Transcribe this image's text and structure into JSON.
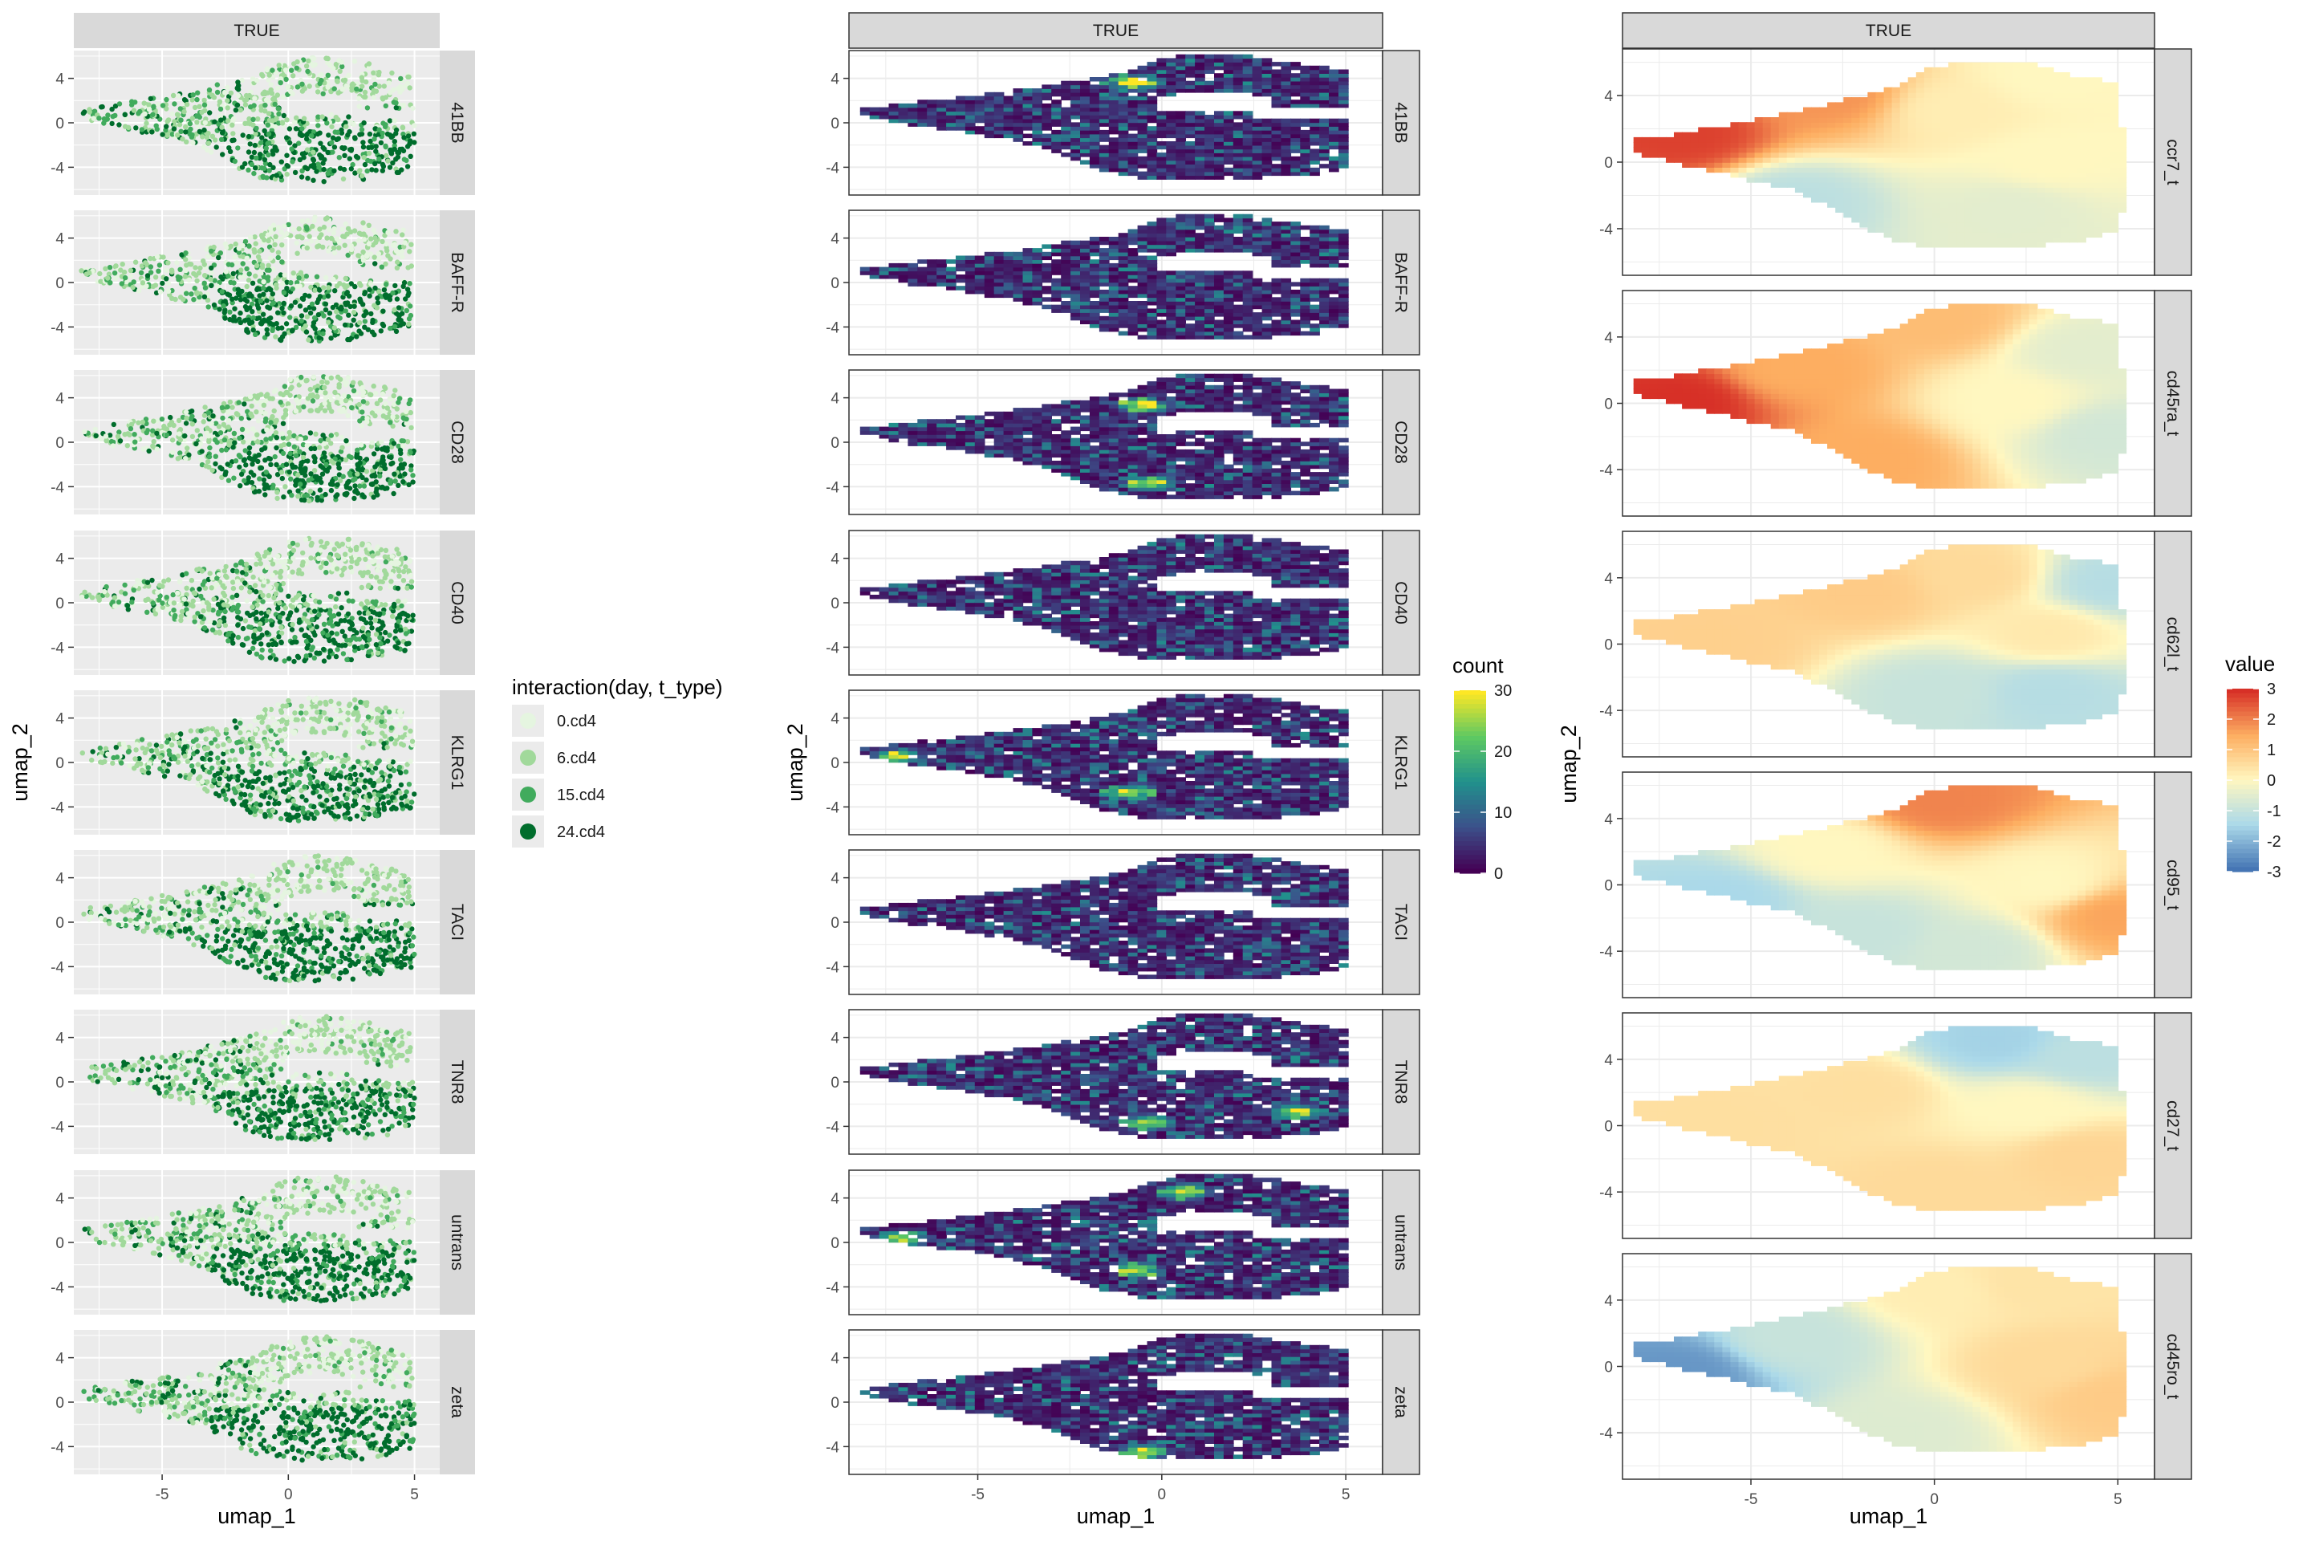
{
  "chart_data": [
    {
      "type": "scatter",
      "strip_top": "TRUE",
      "facets": [
        "41BB",
        "BAFF-R",
        "CD28",
        "CD40",
        "KLRG1",
        "TACI",
        "TNR8",
        "untrans",
        "zeta"
      ],
      "xlabel": "umap_1",
      "ylabel": "umap_2",
      "x_ticks": [
        -5,
        0,
        5
      ],
      "y_ticks": [
        4,
        0,
        -4
      ],
      "xlim": [
        -8.5,
        6
      ],
      "ylim": [
        -6.5,
        6.5
      ],
      "panel_background": "grey",
      "grid": true,
      "legend": {
        "title": "interaction(day, t_type)",
        "position": "right",
        "items": [
          {
            "label": "0.cd4",
            "color": "#e5f5e0"
          },
          {
            "label": "6.cd4",
            "color": "#a1d99b"
          },
          {
            "label": "15.cd4",
            "color": "#41ab5d"
          },
          {
            "label": "24.cd4",
            "color": "#006d2c"
          }
        ]
      }
    },
    {
      "type": "heatmap",
      "strip_top": "TRUE",
      "facets": [
        "41BB",
        "BAFF-R",
        "CD28",
        "CD40",
        "KLRG1",
        "TACI",
        "TNR8",
        "untrans",
        "zeta"
      ],
      "xlabel": "umap_1",
      "ylabel": "umap_2",
      "x_ticks": [
        -5,
        0,
        5
      ],
      "y_ticks": [
        4,
        0,
        -4
      ],
      "xlim": [
        -8.5,
        6
      ],
      "ylim": [
        -6.5,
        6.5
      ],
      "grid": true,
      "legend": {
        "title": "count",
        "position": "right",
        "range": [
          0,
          30
        ],
        "ticks": [
          30,
          20,
          10,
          0
        ],
        "palette": [
          "#440154",
          "#3b528b",
          "#21918c",
          "#5ec962",
          "#fde725"
        ]
      },
      "hotspots": {
        "41BB": [
          [
            -0.9,
            3.5
          ]
        ],
        "BAFF-R": [],
        "CD28": [
          [
            -0.7,
            3.2
          ],
          [
            -0.5,
            -3.8
          ]
        ],
        "CD40": [],
        "KLRG1": [
          [
            -7.3,
            0.4
          ],
          [
            -1.0,
            -2.8
          ]
        ],
        "TACI": [],
        "TNR8": [
          [
            3.5,
            -2.8
          ],
          [
            -0.5,
            -3.8
          ]
        ],
        "untrans": [
          [
            -7.2,
            0.2
          ],
          [
            0.5,
            4.4
          ],
          [
            -0.8,
            -2.6
          ]
        ],
        "zeta": [
          [
            -0.6,
            -4.6
          ]
        ]
      }
    },
    {
      "type": "heatmap",
      "strip_top": "TRUE",
      "facets": [
        "ccr7_t",
        "cd45ra_t",
        "cd62l_t",
        "cd95_t",
        "cd27_t",
        "cd45ro_t"
      ],
      "xlabel": "umap_1",
      "ylabel": "umap_2",
      "x_ticks": [
        -5,
        0,
        5
      ],
      "y_ticks": [
        4,
        0,
        -4
      ],
      "xlim": [
        -8.5,
        6
      ],
      "ylim": [
        -6.8,
        6.8
      ],
      "grid": true,
      "legend": {
        "title": "value",
        "position": "right",
        "range": [
          -3,
          3
        ],
        "ticks": [
          3,
          2,
          1,
          0,
          -1,
          -2,
          -3
        ],
        "palette": [
          "#4575b4",
          "#abd9e9",
          "#fff7c0",
          "#fdae61",
          "#d73027"
        ]
      },
      "gradients": {
        "ccr7_t": [
          [
            -7,
            1.5,
            2.8
          ],
          [
            -3,
            4,
            1.8
          ],
          [
            0.5,
            3,
            0.2
          ],
          [
            3,
            0,
            0
          ],
          [
            -4,
            -2.5,
            -1.2
          ],
          [
            2,
            -3,
            -0.5
          ],
          [
            3,
            5,
            0
          ]
        ],
        "cd45ra_t": [
          [
            -7,
            0,
            3
          ],
          [
            -4,
            2,
            1.5
          ],
          [
            -2,
            -3.5,
            1.5
          ],
          [
            0,
            5,
            1.2
          ],
          [
            2,
            0,
            0
          ],
          [
            4,
            3,
            -0.5
          ],
          [
            4.5,
            -2,
            -0.8
          ]
        ],
        "cd62l_t": [
          [
            -6,
            0,
            0.8
          ],
          [
            -2,
            3,
            0.9
          ],
          [
            1,
            4,
            0.6
          ],
          [
            3,
            0.5,
            0.3
          ],
          [
            0,
            -3,
            -1
          ],
          [
            3,
            -3,
            -1.3
          ],
          [
            4.8,
            3.5,
            -1.3
          ]
        ],
        "cd95_t": [
          [
            -6,
            -1,
            -1.5
          ],
          [
            -3,
            2,
            0
          ],
          [
            -2,
            -3,
            -1
          ],
          [
            0,
            5,
            2
          ],
          [
            3,
            0,
            0
          ],
          [
            4.8,
            -2,
            1.6
          ],
          [
            1,
            -4,
            -0.8
          ]
        ],
        "cd27_t": [
          [
            -6,
            0,
            0.5
          ],
          [
            -2,
            2,
            0.5
          ],
          [
            0,
            -4,
            0.6
          ],
          [
            4,
            -2,
            0.7
          ],
          [
            1.5,
            5,
            -1.6
          ],
          [
            4,
            4,
            -1.2
          ],
          [
            2.5,
            1,
            0
          ]
        ],
        "cd45ro_t": [
          [
            -7,
            -0.5,
            -2.5
          ],
          [
            -4,
            1.5,
            -1
          ],
          [
            -1,
            -4,
            -0.6
          ],
          [
            0,
            4.5,
            0.2
          ],
          [
            3,
            0,
            0.6
          ],
          [
            4.8,
            -2,
            0.9
          ],
          [
            2.5,
            5,
            0.4
          ]
        ]
      }
    }
  ]
}
